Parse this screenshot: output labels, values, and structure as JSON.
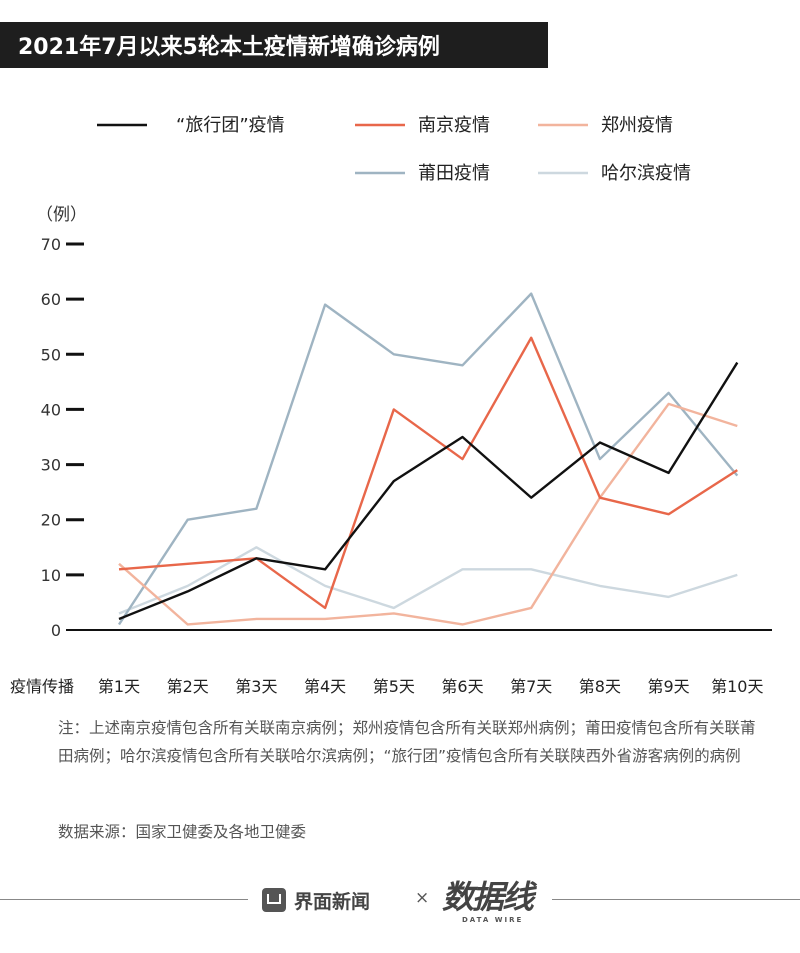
{
  "title": "2021年7月以来5轮本土疫情新增确诊病例",
  "chart_data": {
    "type": "line",
    "title": "2021年7月以来5轮本土疫情新增确诊病例",
    "xlabel": "疫情传播",
    "ylabel": "（例）",
    "categories": [
      "第1天",
      "第2天",
      "第3天",
      "第4天",
      "第5天",
      "第6天",
      "第7天",
      "第8天",
      "第9天",
      "第10天"
    ],
    "ylim": [
      0,
      70
    ],
    "yticks": [
      0,
      10,
      20,
      30,
      40,
      50,
      60,
      70
    ],
    "grid": false,
    "legend_position": "top",
    "series": [
      {
        "name": "“旅行团”疫情",
        "color": "#111111",
        "values": [
          2,
          7,
          13,
          11,
          27,
          35,
          24,
          34,
          28.5,
          48.5
        ]
      },
      {
        "name": "南京疫情",
        "color": "#e8674a",
        "values": [
          11,
          12,
          13,
          4,
          40,
          31,
          53,
          24,
          21,
          29
        ]
      },
      {
        "name": "郑州疫情",
        "color": "#f2b49d",
        "values": [
          12,
          1,
          2,
          2,
          3,
          1,
          4,
          24,
          41,
          37
        ]
      },
      {
        "name": "莆田疫情",
        "color": "#9fb4c2",
        "values": [
          1,
          20,
          22,
          59,
          50,
          48,
          61,
          31,
          43,
          28
        ]
      },
      {
        "name": "哈尔滨疫情",
        "color": "#cdd8df",
        "values": [
          3,
          8,
          15,
          8,
          4,
          11,
          11,
          8,
          6,
          10
        ]
      }
    ]
  },
  "note": "注：上述南京疫情包含所有关联南京病例；郑州疫情包含所有关联郑州病例；莆田疫情包含所有关联莆田病例；哈尔滨疫情包含所有关联哈尔滨病例；“旅行团”疫情包含所有关联陕西外省游客病例的病例",
  "source": "数据来源：国家卫健委及各地卫健委",
  "footer": {
    "brand_name": "界面新闻",
    "times": "×",
    "logo2": "数据线",
    "logo2_sub": "DATA WIRE"
  }
}
